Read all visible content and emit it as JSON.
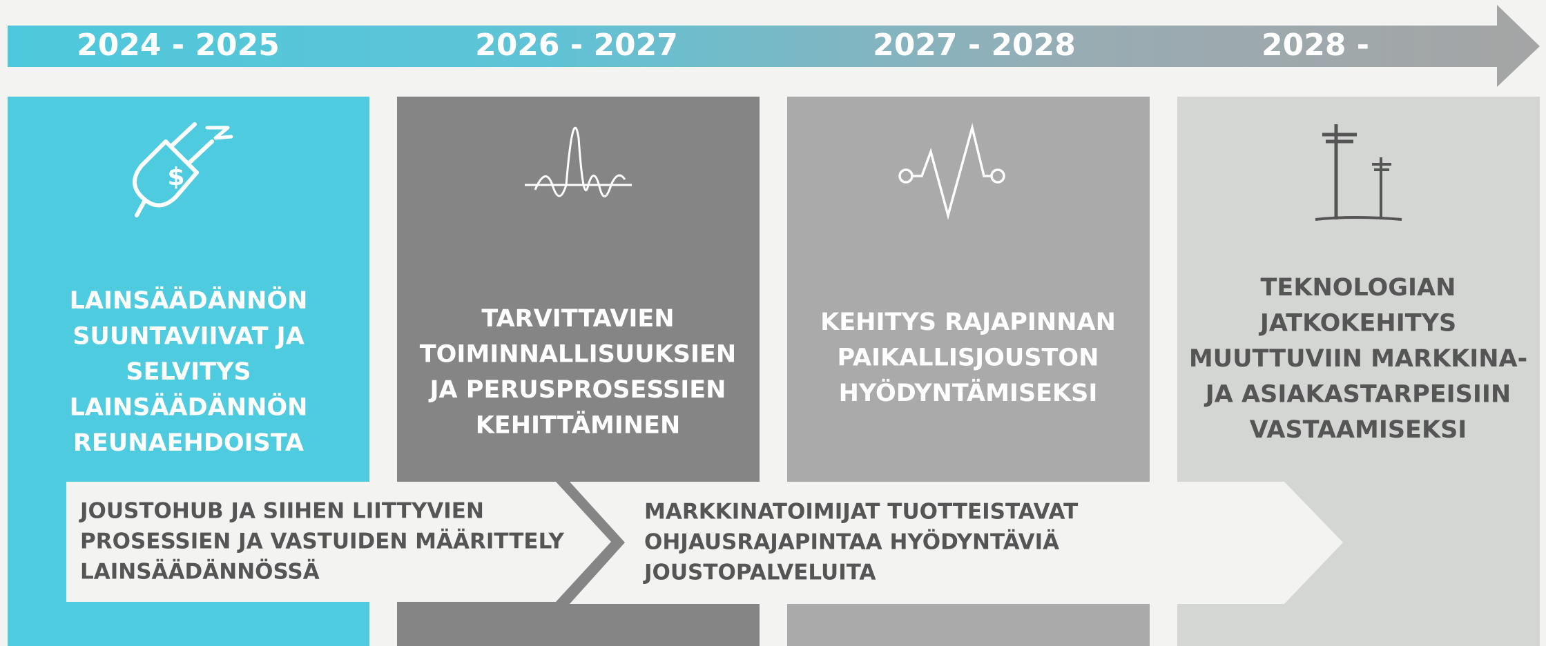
{
  "periods": [
    "2024 - 2025",
    "2026 - 2027",
    "2027 - 2028",
    "2028 -"
  ],
  "columns": [
    {
      "title_lines": [
        "LAINSÄÄDÄNNÖN",
        "SUUNTAVIIVAT JA",
        "SELVITYS",
        "LAINSÄÄDÄNNÖN",
        "REUNAEHDOISTA"
      ]
    },
    {
      "title_lines": [
        "TARVITTAVIEN",
        "TOIMINNALLISUUKSIEN",
        "JA  PERUSPROSESSIEN",
        "KEHITTÄMINEN"
      ]
    },
    {
      "title_lines": [
        "KEHITYS RAJAPINNAN",
        "PAIKALLISJOUSTON",
        "HYÖDYNTÄMISEKSI"
      ]
    },
    {
      "title_lines": [
        "TEKNOLOGIAN",
        "JATKOKEHITYS",
        "MUUTTUVIIN MARKKINA-",
        "JA ASIAKASTARPEISIIN",
        "VASTAAMISEKSI"
      ]
    }
  ],
  "milestones": [
    {
      "lines": [
        "JOUSTOHUB JA SIIHEN LIITTYVIEN",
        "PROSESSIEN JA VASTUIDEN MÄÄRITTELY",
        "LAINSÄÄDÄNNÖSSÄ"
      ]
    },
    {
      "lines": [
        "MARKKINATOIMIJAT TUOTTEISTAVAT",
        "OHJAUSRAJAPINTAA HYÖDYNTÄVIÄ",
        "JOUSTOPALVELUITA"
      ]
    }
  ]
}
